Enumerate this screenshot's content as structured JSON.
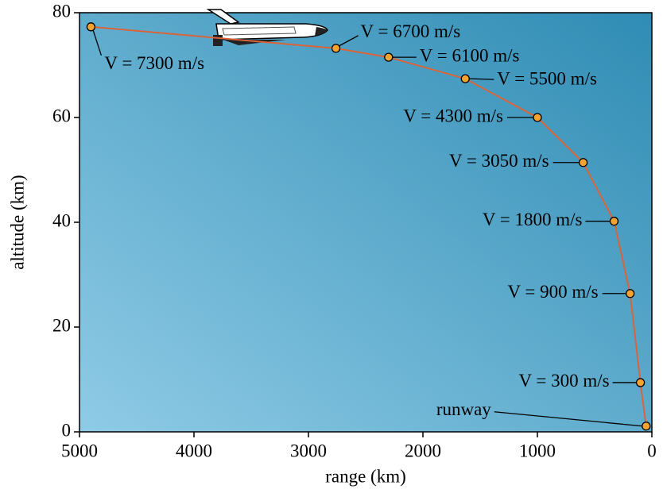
{
  "chart_data": {
    "type": "line",
    "x_label": "range (km)",
    "y_label": "altitude (km)",
    "x": [
      4900,
      2760,
      2300,
      1630,
      1000,
      600,
      330,
      190,
      100,
      50
    ],
    "values": [
      77.3,
      73.2,
      71.5,
      67.4,
      60,
      51.4,
      40.2,
      26.4,
      9.4,
      1.1
    ],
    "point_labels": [
      "V = 7300 m/s",
      "V = 6700 m/s",
      "V = 6100 m/s",
      "V = 5500 m/s",
      "V = 4300 m/s",
      "V = 3050 m/s",
      "V = 1800 m/s",
      "V = 900 m/s",
      "V = 300 m/s",
      "runway"
    ],
    "line_color": "#d9643a",
    "marker_color": "#f5a431",
    "xlim": [
      5000,
      0
    ],
    "xticks": [
      5000,
      4000,
      3000,
      2000,
      1000,
      0
    ],
    "ylim": [
      0,
      80
    ],
    "yticks": [
      0,
      20,
      40,
      60,
      80
    ]
  }
}
